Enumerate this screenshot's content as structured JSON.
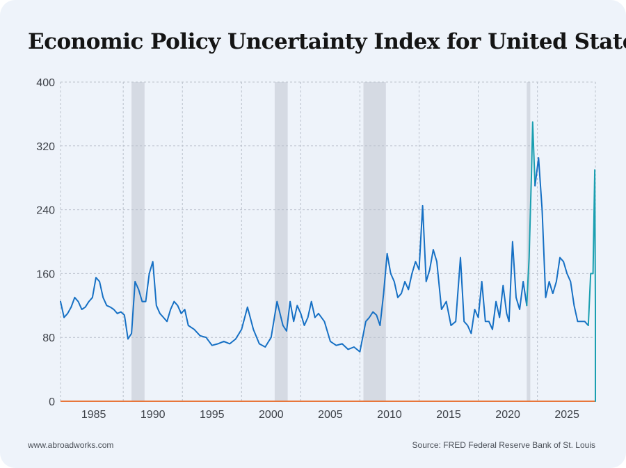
{
  "chart_data": {
    "type": "line",
    "title": "Economic Policy Uncertainty Index for United States",
    "xlabel": "",
    "ylabel": "",
    "xlim": [
      1982.2,
      2027.4
    ],
    "ylim": [
      0,
      400
    ],
    "grid": true,
    "y_ticks": [
      0,
      80,
      160,
      240,
      320,
      400
    ],
    "y_tick_labels": [
      "0",
      "80",
      "160",
      "240",
      "320",
      "400"
    ],
    "x_ticks": [
      1985,
      1990,
      1995,
      2000,
      2005,
      2010,
      2015,
      2020,
      2025
    ],
    "x_tick_labels": [
      "1985",
      "1990",
      "1995",
      "2000",
      "2005",
      "2010",
      "2015",
      "2020",
      "2025"
    ],
    "recessions": [
      {
        "start": 1988.2,
        "end": 1989.3
      },
      {
        "start": 2000.3,
        "end": 2001.4
      },
      {
        "start": 2007.8,
        "end": 2009.7
      },
      {
        "start": 2021.6,
        "end": 2021.9
      }
    ],
    "series": [
      {
        "name": "Economic Policy Uncertainty Index",
        "color": "#1670c4",
        "highlight_color": "#1a9fb0",
        "x": [
          1982.2,
          1982.5,
          1982.8,
          1983.1,
          1983.4,
          1983.7,
          1984.0,
          1984.3,
          1984.6,
          1984.9,
          1985.2,
          1985.5,
          1985.8,
          1986.1,
          1986.4,
          1986.7,
          1987.0,
          1987.3,
          1987.6,
          1987.9,
          1988.2,
          1988.5,
          1988.8,
          1989.1,
          1989.4,
          1989.7,
          1990.0,
          1990.3,
          1990.6,
          1990.9,
          1991.2,
          1991.5,
          1991.8,
          1992.1,
          1992.4,
          1992.7,
          1993.0,
          1993.5,
          1994.0,
          1994.5,
          1995.0,
          1995.5,
          1996.0,
          1996.5,
          1997.0,
          1997.5,
          1998.0,
          1998.5,
          1999.0,
          1999.5,
          2000.0,
          2000.5,
          2001.0,
          2001.3,
          2001.6,
          2001.9,
          2002.2,
          2002.5,
          2002.8,
          2003.1,
          2003.4,
          2003.7,
          2004.0,
          2004.5,
          2005.0,
          2005.5,
          2006.0,
          2006.5,
          2007.0,
          2007.5,
          2008.0,
          2008.3,
          2008.6,
          2008.9,
          2009.2,
          2009.5,
          2009.8,
          2010.1,
          2010.4,
          2010.7,
          2011.0,
          2011.3,
          2011.6,
          2011.9,
          2012.2,
          2012.5,
          2012.8,
          2013.1,
          2013.4,
          2013.7,
          2014.0,
          2014.4,
          2014.8,
          2015.2,
          2015.6,
          2016.0,
          2016.3,
          2016.6,
          2016.9,
          2017.2,
          2017.5,
          2017.8,
          2018.1,
          2018.4,
          2018.7,
          2019.0,
          2019.3,
          2019.6,
          2019.9,
          2020.1,
          2020.4,
          2020.7,
          2021.0,
          2021.3,
          2021.6,
          2021.8,
          2022.0,
          2022.1,
          2022.3,
          2022.6,
          2022.9,
          2023.2,
          2023.5,
          2023.8,
          2024.1,
          2024.4,
          2024.7,
          2025.0,
          2025.3,
          2025.6,
          2025.9,
          2026.2,
          2026.5,
          2026.8,
          2027.0,
          2027.2,
          2027.35,
          2027.4,
          2027.4
        ],
        "values": [
          125,
          105,
          110,
          118,
          130,
          125,
          115,
          118,
          125,
          130,
          155,
          150,
          130,
          120,
          118,
          115,
          110,
          112,
          108,
          78,
          85,
          150,
          140,
          125,
          125,
          160,
          175,
          120,
          110,
          105,
          100,
          115,
          125,
          120,
          110,
          115,
          95,
          90,
          82,
          80,
          70,
          72,
          75,
          72,
          78,
          90,
          118,
          90,
          72,
          68,
          80,
          125,
          95,
          88,
          125,
          100,
          120,
          110,
          95,
          105,
          125,
          105,
          110,
          100,
          75,
          70,
          72,
          65,
          68,
          62,
          100,
          105,
          112,
          108,
          95,
          135,
          185,
          160,
          150,
          130,
          135,
          150,
          140,
          160,
          175,
          165,
          245,
          150,
          165,
          190,
          175,
          115,
          125,
          95,
          100,
          180,
          100,
          95,
          85,
          115,
          105,
          150,
          100,
          100,
          90,
          125,
          105,
          145,
          110,
          100,
          200,
          130,
          115,
          150,
          120,
          180,
          285,
          350,
          270,
          305,
          240,
          130,
          150,
          135,
          150,
          180,
          175,
          160,
          150,
          120,
          100,
          100,
          100,
          95,
          160,
          160,
          290,
          120,
          0
        ]
      }
    ]
  },
  "footer": {
    "left": "www.abroadworks.com",
    "right": "Source: FRED Federal Reserve Bank of St. Louis"
  }
}
